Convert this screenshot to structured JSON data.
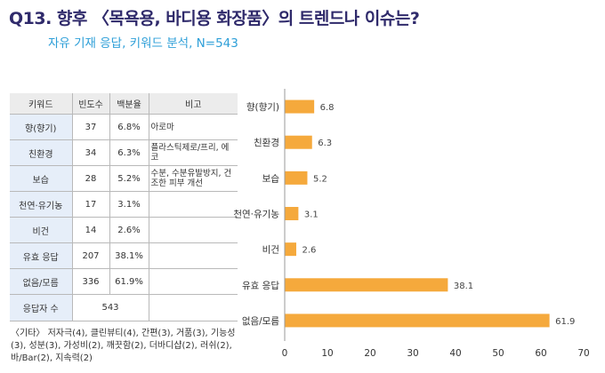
{
  "header": {
    "title": "Q13. 향후 〈목욕용, 바디용 화장품〉의 트렌드나 이슈는?",
    "subtitle": "자유 기재 응답, 키워드 분석, N=543"
  },
  "table": {
    "headers": [
      "키워드",
      "빈도수",
      "백분율",
      "비고"
    ],
    "rows": [
      {
        "keyword": "향(향기)",
        "freq": "37",
        "pct": "6.8%",
        "note": "아로마"
      },
      {
        "keyword": "친환경",
        "freq": "34",
        "pct": "6.3%",
        "note": "플라스틱제로/프리, 에코"
      },
      {
        "keyword": "보습",
        "freq": "28",
        "pct": "5.2%",
        "note": "수분, 수분유발방지, 건조한 피부 개선"
      },
      {
        "keyword": "천연·유기농",
        "freq": "17",
        "pct": "3.1%",
        "note": ""
      },
      {
        "keyword": "비건",
        "freq": "14",
        "pct": "2.6%",
        "note": ""
      },
      {
        "keyword": "유효 응답",
        "freq": "207",
        "pct": "38.1%",
        "note": ""
      },
      {
        "keyword": "없음/모름",
        "freq": "336",
        "pct": "61.9%",
        "note": ""
      }
    ],
    "respondents_label": "응답자 수",
    "respondents_value": "543"
  },
  "others_note": "〈기타〉 저자극(4), 클린뷰티(4), 간편(3), 거품(3), 기능성(3), 성분(3), 가성비(2), 깨끗함(2), 더바디샵(2), 러쉬(2), 바/Bar(2), 지속력(2)",
  "colors": {
    "bar": "#f5a93c",
    "title": "#2f2a6b",
    "subtitle": "#2e9fd8",
    "keyword_cell": "#e6eef9",
    "header_cell": "#ececec"
  },
  "chart_data": {
    "type": "bar",
    "orientation": "horizontal",
    "categories": [
      "향(향기)",
      "친환경",
      "보습",
      "천연·유기농",
      "비건",
      "유효 응답",
      "없음/모름"
    ],
    "values": [
      6.8,
      6.3,
      5.2,
      3.1,
      2.6,
      38.1,
      61.9
    ],
    "xlim": [
      0,
      70
    ],
    "xticks": [
      0,
      10,
      20,
      30,
      40,
      50,
      60,
      70
    ],
    "grid": false,
    "data_labels": true
  }
}
